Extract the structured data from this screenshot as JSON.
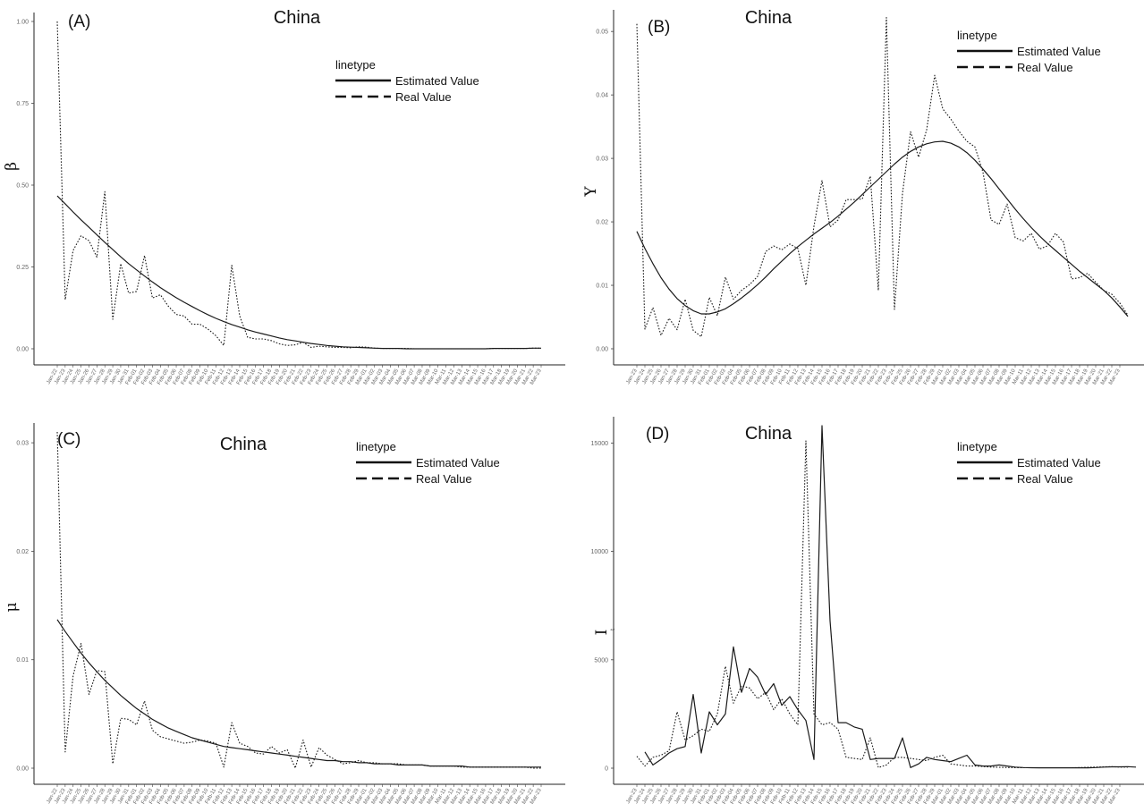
{
  "dates": [
    "Jan-22",
    "Jan-23",
    "Jan-24",
    "Jan-25",
    "Jan-26",
    "Jan-27",
    "Jan-28",
    "Jan-29",
    "Jan-30",
    "Jan-31",
    "Feb-01",
    "Feb-02",
    "Feb-03",
    "Feb-04",
    "Feb-05",
    "Feb-06",
    "Feb-07",
    "Feb-08",
    "Feb-09",
    "Feb-10",
    "Feb-11",
    "Feb-12",
    "Feb-13",
    "Feb-14",
    "Feb-15",
    "Feb-16",
    "Feb-17",
    "Feb-18",
    "Feb-19",
    "Feb-20",
    "Feb-21",
    "Feb-22",
    "Feb-23",
    "Feb-24",
    "Feb-25",
    "Feb-26",
    "Feb-27",
    "Feb-28",
    "Feb-29",
    "Mar-01",
    "Mar-02",
    "Mar-03",
    "Mar-04",
    "Mar-05",
    "Mar-06",
    "Mar-07",
    "Mar-08",
    "Mar-09",
    "Mar-10",
    "Mar-11",
    "Mar-12",
    "Mar-13",
    "Mar-14",
    "Mar-15",
    "Mar-16",
    "Mar-17",
    "Mar-18",
    "Mar-19",
    "Mar-20",
    "Mar-21",
    "Mar-22",
    "Mar-23"
  ],
  "chart_data": [
    {
      "type": "line",
      "panel_label": "(A)",
      "title": "China",
      "ylabel": "β",
      "xlabel": "",
      "x_start": "Jan-22",
      "ylim": [
        0,
        1.0
      ],
      "yticks": [
        "0.00",
        "0.25",
        "0.50",
        "0.75",
        "1.00"
      ],
      "ytick_values": [
        0,
        0.25,
        0.5,
        0.75,
        1.0
      ],
      "legend": {
        "title": "linetype",
        "position": "top-right",
        "entries": [
          "Estimated Value",
          "Real Value"
        ]
      },
      "grid": false,
      "series": [
        {
          "name": "Estimated Value",
          "style": "solid",
          "start_index": 0,
          "values": [
            0.467,
            0.443,
            0.418,
            0.394,
            0.371,
            0.348,
            0.325,
            0.303,
            0.281,
            0.26,
            0.241,
            0.222,
            0.204,
            0.187,
            0.171,
            0.156,
            0.142,
            0.129,
            0.116,
            0.104,
            0.093,
            0.083,
            0.074,
            0.066,
            0.058,
            0.051,
            0.045,
            0.039,
            0.033,
            0.028,
            0.024,
            0.02,
            0.016,
            0.013,
            0.01,
            0.008,
            0.006,
            0.005,
            0.004,
            0.003,
            0.002,
            0.001,
            0.001,
            0.001,
            0.0,
            0.0,
            0.0,
            0.0,
            0.0,
            0.0,
            0.0,
            0.0,
            0.0,
            0.0,
            0.0,
            0.001,
            0.001,
            0.001,
            0.001,
            0.001,
            0.002,
            0.002
          ]
        },
        {
          "name": "Real Value",
          "style": "dotted",
          "start_index": 0,
          "values": [
            1.0,
            0.15,
            0.3,
            0.345,
            0.33,
            0.28,
            0.48,
            0.09,
            0.26,
            0.17,
            0.175,
            0.285,
            0.155,
            0.165,
            0.13,
            0.105,
            0.1,
            0.075,
            0.075,
            0.06,
            0.04,
            0.01,
            0.255,
            0.1,
            0.035,
            0.03,
            0.03,
            0.025,
            0.015,
            0.01,
            0.012,
            0.02,
            0.004,
            0.008,
            0.006,
            0.004,
            0.004,
            0.003,
            0.006,
            0.005,
            0.002,
            0.001,
            0.001,
            0.001,
            0.001,
            0.0,
            0.0,
            0.0,
            0.0,
            0.0,
            0.0,
            0.0,
            0.0,
            0.0,
            0.0,
            0.001,
            0.001,
            0.001,
            0.001,
            0.001,
            0.002,
            0.002
          ]
        }
      ]
    },
    {
      "type": "line",
      "panel_label": "(B)",
      "title": "China",
      "ylabel": "Y",
      "xlabel": "",
      "x_start": "Jan-23",
      "ylim": [
        0,
        0.052
      ],
      "yticks": [
        "0.00",
        "0.01",
        "0.02",
        "0.03",
        "0.04",
        "0.05"
      ],
      "ytick_values": [
        0,
        0.01,
        0.02,
        0.03,
        0.04,
        0.05
      ],
      "legend": {
        "title": "linetype",
        "position": "top-right",
        "entries": [
          "Estimated Value",
          "Real Value"
        ]
      },
      "grid": false,
      "series": [
        {
          "name": "Estimated Value",
          "style": "solid",
          "start_index": 1,
          "values": [
            0.0185,
            0.0158,
            0.0134,
            0.0112,
            0.0094,
            0.0079,
            0.0068,
            0.006,
            0.0055,
            0.0055,
            0.0058,
            0.0063,
            0.0071,
            0.008,
            0.009,
            0.0101,
            0.0113,
            0.0126,
            0.0138,
            0.015,
            0.0161,
            0.0171,
            0.0181,
            0.019,
            0.0199,
            0.0209,
            0.022,
            0.0231,
            0.0243,
            0.0255,
            0.0267,
            0.0279,
            0.0291,
            0.0302,
            0.0311,
            0.0318,
            0.0323,
            0.0326,
            0.0327,
            0.0324,
            0.0318,
            0.0309,
            0.0297,
            0.0283,
            0.0268,
            0.0252,
            0.0236,
            0.022,
            0.0205,
            0.0191,
            0.0178,
            0.0166,
            0.0155,
            0.0144,
            0.0133,
            0.0122,
            0.0112,
            0.0102,
            0.0092,
            0.008,
            0.0066,
            0.0051
          ]
        },
        {
          "name": "Real Value",
          "style": "dotted",
          "start_index": 1,
          "values": [
            0.0512,
            0.0031,
            0.0065,
            0.0021,
            0.0048,
            0.003,
            0.0078,
            0.0029,
            0.0019,
            0.0081,
            0.0052,
            0.0113,
            0.0078,
            0.0092,
            0.0101,
            0.0114,
            0.0153,
            0.0162,
            0.0156,
            0.0165,
            0.0158,
            0.01,
            0.0193,
            0.0265,
            0.0192,
            0.0203,
            0.0235,
            0.0235,
            0.0236,
            0.0272,
            0.0092,
            0.0522,
            0.0062,
            0.0245,
            0.0342,
            0.0302,
            0.0345,
            0.0431,
            0.0378,
            0.0362,
            0.0343,
            0.0327,
            0.0318,
            0.0278,
            0.0203,
            0.0196,
            0.0228,
            0.0175,
            0.017,
            0.0182,
            0.0157,
            0.0162,
            0.0182,
            0.0168,
            0.011,
            0.0112,
            0.0119,
            0.0105,
            0.0092,
            0.0086,
            0.0072,
            0.0053
          ]
        }
      ]
    },
    {
      "type": "line",
      "panel_label": "(C)",
      "title": "China",
      "ylabel": "μ",
      "xlabel": "",
      "x_start": "Jan-22",
      "ylim": [
        0,
        0.031
      ],
      "yticks": [
        "0.00",
        "0.01",
        "0.02",
        "0.03"
      ],
      "ytick_values": [
        0,
        0.01,
        0.02,
        0.03
      ],
      "legend": {
        "title": "linetype",
        "position": "top-right",
        "entries": [
          "Estimated Value",
          "Real Value"
        ]
      },
      "grid": false,
      "series": [
        {
          "name": "Estimated Value",
          "style": "solid",
          "start_index": 0,
          "values": [
            0.0137,
            0.0126,
            0.0116,
            0.0106,
            0.0097,
            0.0089,
            0.0081,
            0.0074,
            0.0067,
            0.0061,
            0.0055,
            0.005,
            0.0045,
            0.0041,
            0.0037,
            0.0034,
            0.0031,
            0.0028,
            0.0026,
            0.0024,
            0.0022,
            0.002,
            0.0019,
            0.0018,
            0.0017,
            0.0016,
            0.0015,
            0.0014,
            0.0013,
            0.0012,
            0.0011,
            0.001,
            0.0009,
            0.0008,
            0.0007,
            0.0007,
            0.0006,
            0.0006,
            0.0005,
            0.0005,
            0.0004,
            0.0004,
            0.0004,
            0.0003,
            0.0003,
            0.0003,
            0.0003,
            0.0002,
            0.0002,
            0.0002,
            0.0002,
            0.0002,
            0.0001,
            0.0001,
            0.0001,
            0.0001,
            0.0001,
            0.0001,
            0.0001,
            0.0001,
            0.0001,
            0.0001
          ]
        },
        {
          "name": "Real Value",
          "style": "dotted",
          "start_index": 0,
          "values": [
            0.031,
            0.0015,
            0.0085,
            0.0115,
            0.0068,
            0.009,
            0.0089,
            0.0004,
            0.0046,
            0.0045,
            0.004,
            0.0062,
            0.0035,
            0.0029,
            0.0027,
            0.0025,
            0.0023,
            0.0024,
            0.0026,
            0.0025,
            0.0023,
            0.0001,
            0.0042,
            0.0023,
            0.002,
            0.0014,
            0.0013,
            0.002,
            0.0014,
            0.0017,
            0.0,
            0.0026,
            0.0001,
            0.0019,
            0.0012,
            0.0008,
            0.0004,
            0.0005,
            0.0007,
            0.0005,
            0.0005,
            0.0004,
            0.0004,
            0.0004,
            0.0003,
            0.0003,
            0.0003,
            0.0002,
            0.0002,
            0.0002,
            0.0002,
            0.0001,
            0.0001,
            0.0001,
            0.0001,
            0.0001,
            0.0001,
            0.0001,
            0.0001,
            0.0001,
            0.0,
            0.0
          ]
        }
      ]
    },
    {
      "type": "line",
      "panel_label": "(D)",
      "title": "China",
      "ylabel": "I",
      "ylabel_subscript": "t",
      "xlabel": "",
      "x_start": "Jan-23",
      "ylim": [
        0,
        15800
      ],
      "yticks": [
        "0",
        "5000",
        "10000",
        "15000"
      ],
      "ytick_values": [
        0,
        5000,
        10000,
        15000
      ],
      "legend": {
        "title": "linetype",
        "position": "top-right",
        "entries": [
          "Estimated Value",
          "Real Value"
        ]
      },
      "grid": false,
      "series": [
        {
          "name": "Estimated Value",
          "style": "solid",
          "start_index": 2,
          "values": [
            750,
            150,
            400,
            700,
            900,
            1000,
            3400,
            700,
            2600,
            2000,
            2500,
            5600,
            3500,
            4600,
            4200,
            3400,
            3900,
            2900,
            3300,
            2700,
            2200,
            400,
            15800,
            6800,
            2100,
            2100,
            1900,
            1800,
            400,
            450,
            450,
            450,
            1400,
            30,
            200,
            500,
            400,
            350,
            300,
            450,
            600,
            150,
            100,
            100,
            150,
            100,
            50,
            30,
            20,
            15,
            15,
            15,
            15,
            15,
            15,
            15,
            30,
            50,
            60,
            60,
            70,
            50
          ]
        },
        {
          "name": "Real Value",
          "style": "dotted",
          "start_index": 1,
          "values": [
            550,
            100,
            500,
            600,
            800,
            2600,
            1300,
            1500,
            1800,
            1700,
            2500,
            4700,
            3000,
            3800,
            3700,
            3200,
            3500,
            2700,
            3200,
            2500,
            2000,
            15100,
            2500,
            2000,
            2100,
            1800,
            500,
            450,
            400,
            1400,
            30,
            150,
            500,
            500,
            450,
            400,
            350,
            500,
            600,
            200,
            150,
            100,
            100,
            80,
            50,
            40,
            30,
            25,
            20,
            20,
            20,
            20,
            20,
            20,
            20,
            30,
            40,
            50,
            60,
            70,
            50,
            50
          ]
        }
      ]
    }
  ]
}
